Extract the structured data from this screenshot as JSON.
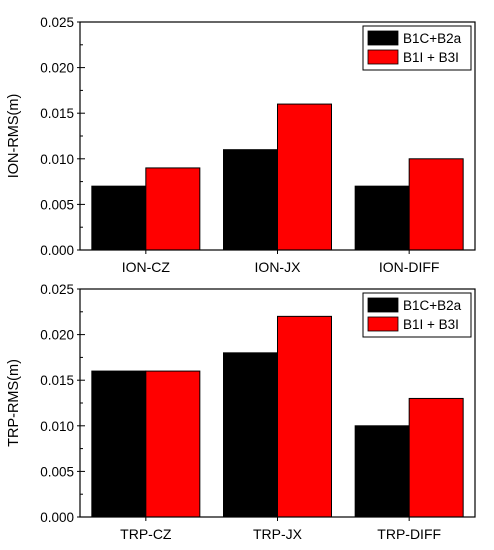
{
  "chart_data": [
    {
      "type": "bar",
      "ylabel": "ION-RMS(m)",
      "xlabel": "",
      "categories": [
        "ION-CZ",
        "ION-JX",
        "ION-DIFF"
      ],
      "ylim": [
        0,
        0.025
      ],
      "yticks": [
        0.0,
        0.005,
        0.01,
        0.015,
        0.02,
        0.025
      ],
      "ytick_labels": [
        "0.000",
        "0.005",
        "0.010",
        "0.015",
        "0.020",
        "0.025"
      ],
      "legend_position": "top-right",
      "series": [
        {
          "name": "B1C+B2a",
          "color": "#000000",
          "values": [
            0.007,
            0.011,
            0.007
          ]
        },
        {
          "name": "B1I + B3I",
          "color": "#ff0000",
          "values": [
            0.009,
            0.016,
            0.01
          ]
        }
      ]
    },
    {
      "type": "bar",
      "ylabel": "TRP-RMS(m)",
      "xlabel": "",
      "categories": [
        "TRP-CZ",
        "TRP-JX",
        "TRP-DIFF"
      ],
      "ylim": [
        0,
        0.025
      ],
      "yticks": [
        0.0,
        0.005,
        0.01,
        0.015,
        0.02,
        0.025
      ],
      "ytick_labels": [
        "0.000",
        "0.005",
        "0.010",
        "0.015",
        "0.020",
        "0.025"
      ],
      "legend_position": "top-right",
      "series": [
        {
          "name": "B1C+B2a",
          "color": "#000000",
          "values": [
            0.016,
            0.018,
            0.01
          ]
        },
        {
          "name": "B1I + B3I",
          "color": "#ff0000",
          "values": [
            0.016,
            0.022,
            0.013
          ]
        }
      ]
    }
  ]
}
